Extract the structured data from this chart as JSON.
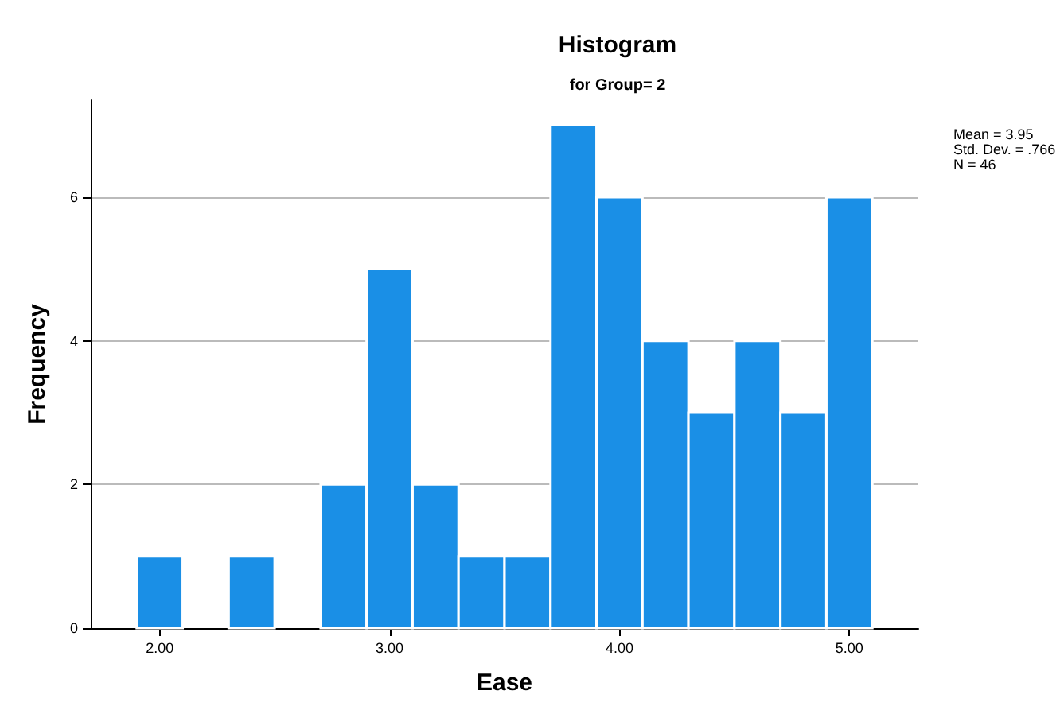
{
  "chart_data": {
    "type": "histogram",
    "title": "Histogram",
    "subtitle": "for Group= 2",
    "xlabel": "Ease",
    "ylabel": "Frequency",
    "annotations": [
      "Mean = 3.95",
      "Std. Dev. = .766",
      "N = 46"
    ],
    "bins": [
      1.9,
      2.1,
      2.3,
      2.5,
      2.7,
      2.9,
      3.1,
      3.3,
      3.5,
      3.7,
      3.9,
      4.1,
      4.3,
      4.5,
      4.7,
      4.9,
      5.1
    ],
    "values": [
      1,
      0,
      1,
      0,
      2,
      5,
      2,
      1,
      1,
      7,
      6,
      4,
      3,
      4,
      3,
      6
    ],
    "color": "#1a8fe6",
    "xlim": [
      1.7,
      5.3
    ],
    "xticks": [
      {
        "value": 2,
        "label": "2.00"
      },
      {
        "value": 3,
        "label": "3.00"
      },
      {
        "value": 4,
        "label": "4.00"
      },
      {
        "value": 5,
        "label": "5.00"
      }
    ],
    "ylim": [
      0,
      7.35
    ],
    "yticks": [
      0,
      2,
      4,
      6
    ],
    "grid": "y"
  }
}
